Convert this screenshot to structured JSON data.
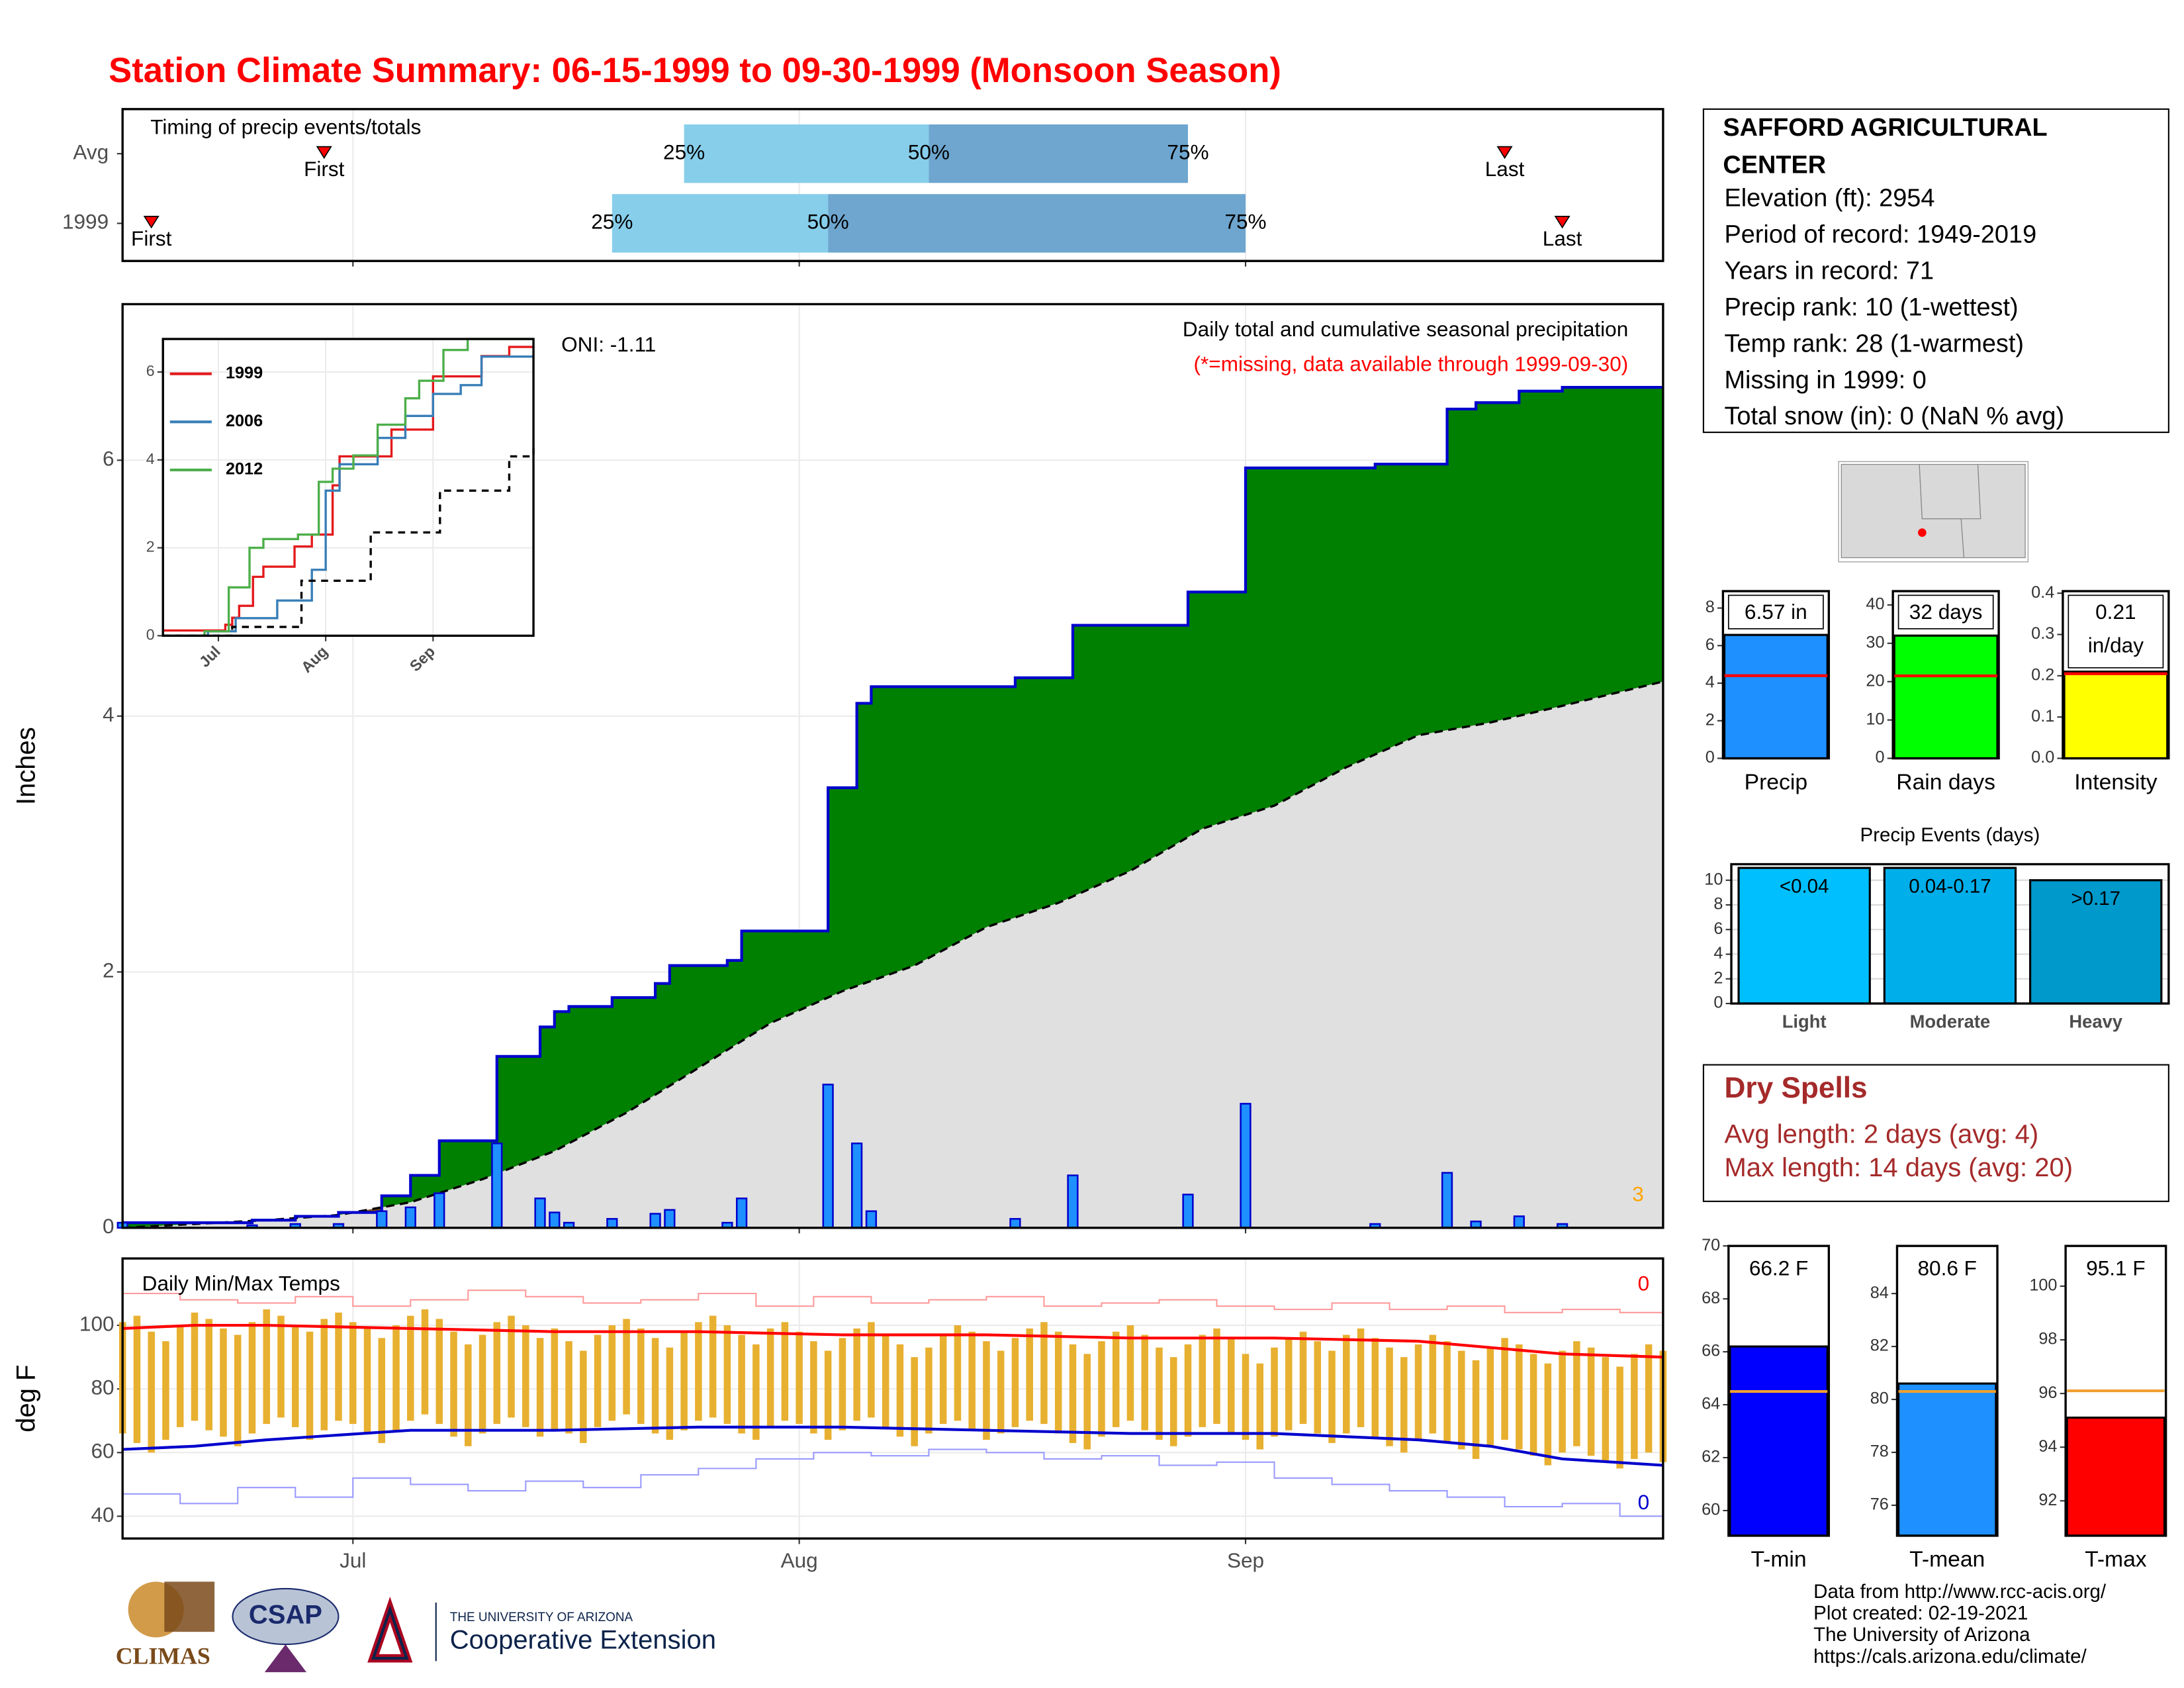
{
  "title": "Station Climate Summary: 06-15-1999 to 09-30-1999 (Monsoon Season)",
  "station": {
    "name": "SAFFORD AGRICULTURAL CENTER",
    "lines": [
      "Elevation (ft): 2954",
      "Period of record: 1949-2019",
      "Years in record: 71",
      "Precip rank: 10 (1-wettest)",
      "Temp rank: 28 (1-warmest)",
      "Missing in 1999: 0",
      "Total snow (in): 0 (NaN % avg)"
    ]
  },
  "dry_spells": {
    "title": "Dry Spells",
    "lines": [
      "Avg length: 2 days (avg: 4)",
      "Max length: 14 days (avg: 20)"
    ]
  },
  "footer": {
    "logos": [
      "CLIMAS",
      "CSAP",
      "THE UNIVERSITY OF ARIZONA",
      "Cooperative Extension"
    ],
    "lines": [
      "Data from http://www.rcc-acis.org/",
      "Plot created: 02-19-2021",
      "The University of Arizona",
      "https://cals.arizona.edu/climate/"
    ]
  },
  "chart_data": [
    {
      "type": "timing",
      "title": "Timing of precip events/totals",
      "event_labels": [
        "First",
        "25%",
        "50%",
        "75%",
        "Last"
      ],
      "series": [
        {
          "name": "Avg",
          "values": [
            14,
            39,
            56,
            74,
            96
          ]
        },
        {
          "name": "1999",
          "values": [
            2,
            34,
            49,
            78,
            100
          ]
        }
      ],
      "colors": [
        "#87ceeb",
        "#6ea6cf",
        "#ff0000"
      ],
      "xlim": [
        0,
        107
      ],
      "xticks": [
        16,
        47,
        78
      ],
      "grid": true
    },
    {
      "type": "precip",
      "subtitle": "Daily total and cumulative seasonal precipitation",
      "note": "(*=missing, data available through 1999-09-30)",
      "oni": "ONI: -1.11",
      "missing_days": 3,
      "ylabel": "Inches",
      "x": [
        0,
        9,
        12,
        15,
        18,
        20,
        22,
        26,
        29,
        30,
        31,
        34,
        37,
        38,
        42,
        43,
        49,
        51,
        52,
        62,
        66,
        74,
        78,
        87,
        92,
        94,
        97,
        100
      ],
      "values": [
        0.04,
        0.02,
        0.03,
        0.03,
        0.13,
        0.16,
        0.27,
        0.66,
        0.23,
        0.12,
        0.04,
        0.07,
        0.11,
        0.14,
        0.04,
        0.23,
        1.12,
        0.66,
        0.13,
        0.07,
        0.41,
        0.26,
        0.97,
        0.03,
        0.43,
        0.05,
        0.09,
        0.03
      ],
      "avg_x": [
        0,
        5,
        10,
        15,
        20,
        25,
        30,
        35,
        40,
        45,
        50,
        55,
        60,
        65,
        70,
        75,
        80,
        85,
        90,
        95,
        100,
        107
      ],
      "avg_values": [
        0,
        0.03,
        0.06,
        0.1,
        0.2,
        0.38,
        0.6,
        0.9,
        1.25,
        1.6,
        1.85,
        2.05,
        2.35,
        2.54,
        2.79,
        3.12,
        3.3,
        3.6,
        3.85,
        3.95,
        4.08,
        4.27
      ],
      "colors": {
        "bar": "#1e90ff",
        "bar_edge": "#0000cd",
        "line": "#0000cd",
        "above": "#008000",
        "below": "#7a4a1a",
        "avg_fill": "#e0e0e0"
      },
      "xlim": [
        0,
        107
      ],
      "xticks": [
        16,
        47,
        78
      ],
      "ylim": [
        0,
        7.22
      ],
      "yticks": [
        0,
        2,
        4,
        6
      ],
      "grid": true
    },
    {
      "type": "line",
      "xlim": [
        0,
        107
      ],
      "ylim": [
        0,
        6.75
      ],
      "yticks": [
        0,
        2,
        4,
        6
      ],
      "xticks": [
        {
          "value": 16,
          "label": "Jul"
        },
        {
          "value": 47,
          "label": "Aug"
        },
        {
          "value": 78,
          "label": "Sep"
        }
      ],
      "series": [
        {
          "name": "1999",
          "color": "#e41a1c",
          "x": [
            0,
            18,
            20,
            22,
            26,
            29,
            38,
            43,
            49,
            51,
            66,
            78,
            92,
            100,
            107
          ],
          "values": [
            0.12,
            0.25,
            0.41,
            0.68,
            1.34,
            1.57,
            2.03,
            2.3,
            3.42,
            4.08,
            4.69,
            5.9,
            6.36,
            6.57,
            6.57
          ]
        },
        {
          "name": "2006",
          "color": "#377eb8",
          "x": [
            0,
            13,
            21,
            33,
            43,
            47,
            51,
            62,
            70,
            78,
            86,
            92,
            107
          ],
          "values": [
            0,
            0.1,
            0.4,
            0.8,
            1.5,
            3.3,
            3.9,
            4.5,
            5.0,
            5.5,
            5.7,
            6.35,
            6.35
          ]
        },
        {
          "name": "2012",
          "color": "#4daf4a",
          "x": [
            0,
            12,
            19,
            25,
            29,
            39,
            45,
            49,
            55,
            62,
            70,
            74,
            81,
            88,
            107
          ],
          "values": [
            0,
            0.1,
            1.1,
            2.0,
            2.2,
            2.3,
            3.5,
            3.8,
            4.1,
            4.8,
            5.4,
            5.8,
            6.5,
            6.75,
            6.75
          ]
        },
        {
          "color": "#000000",
          "dashed": true,
          "x": [
            0,
            20,
            40,
            60,
            80,
            100,
            107
          ],
          "values": [
            0,
            0.2,
            1.25,
            2.35,
            3.3,
            4.08,
            4.27
          ]
        }
      ]
    },
    {
      "type": "temperature",
      "title": "Daily Min/Max Temps",
      "ylabel": "deg F",
      "record_high_days": 0,
      "record_low_days": 0,
      "xlim": [
        0,
        107
      ],
      "xticks": [
        {
          "value": 16,
          "label": "Jul"
        },
        {
          "value": 47,
          "label": "Aug"
        },
        {
          "value": 78,
          "label": "Sep"
        }
      ],
      "ylim": [
        33,
        121
      ],
      "yticks": [
        40,
        60,
        80,
        100
      ],
      "grid": true,
      "colors": {
        "bar": "#e8b030",
        "avg_max": "#ff0000",
        "avg_min": "#0000cd",
        "record_high": "#ff9a9a",
        "record_low": "#9a9aff"
      },
      "x": [
        0,
        1,
        2,
        3,
        4,
        5,
        6,
        7,
        8,
        9,
        10,
        11,
        12,
        13,
        14,
        15,
        16,
        17,
        18,
        19,
        20,
        21,
        22,
        23,
        24,
        25,
        26,
        27,
        28,
        29,
        30,
        31,
        32,
        33,
        34,
        35,
        36,
        37,
        38,
        39,
        40,
        41,
        42,
        43,
        44,
        45,
        46,
        47,
        48,
        49,
        50,
        51,
        52,
        53,
        54,
        55,
        56,
        57,
        58,
        59,
        60,
        61,
        62,
        63,
        64,
        65,
        66,
        67,
        68,
        69,
        70,
        71,
        72,
        73,
        74,
        75,
        76,
        77,
        78,
        79,
        80,
        81,
        82,
        83,
        84,
        85,
        86,
        87,
        88,
        89,
        90,
        91,
        92,
        93,
        94,
        95,
        96,
        97,
        98,
        99,
        100,
        101,
        102,
        103,
        104,
        105,
        106,
        107
      ],
      "tmax": [
        101,
        103,
        98,
        95,
        100,
        104,
        102,
        99,
        97,
        101,
        105,
        103,
        100,
        98,
        102,
        104,
        101,
        99,
        96,
        100,
        103,
        105,
        102,
        98,
        94,
        97,
        101,
        103,
        100,
        96,
        99,
        95,
        92,
        97,
        100,
        102,
        99,
        96,
        93,
        98,
        101,
        103,
        100,
        97,
        94,
        99,
        101,
        98,
        95,
        92,
        96,
        99,
        101,
        97,
        94,
        90,
        93,
        97,
        100,
        98,
        95,
        92,
        96,
        99,
        101,
        98,
        94,
        91,
        95,
        98,
        100,
        97,
        93,
        90,
        94,
        97,
        99,
        96,
        91,
        88,
        93,
        96,
        98,
        95,
        92,
        97,
        99,
        96,
        93,
        90,
        94,
        97,
        95,
        92,
        89,
        93,
        96,
        94,
        91,
        88,
        92,
        95,
        93,
        90,
        87,
        91,
        94,
        92
      ],
      "tmin": [
        66,
        63,
        60,
        64,
        68,
        70,
        67,
        65,
        62,
        66,
        69,
        71,
        68,
        64,
        67,
        70,
        69,
        66,
        63,
        67,
        70,
        72,
        69,
        65,
        62,
        66,
        69,
        71,
        68,
        65,
        67,
        66,
        63,
        68,
        70,
        72,
        69,
        66,
        64,
        67,
        70,
        71,
        69,
        66,
        64,
        68,
        70,
        69,
        66,
        64,
        67,
        70,
        71,
        68,
        65,
        62,
        66,
        69,
        70,
        67,
        64,
        66,
        68,
        70,
        69,
        66,
        63,
        61,
        65,
        68,
        70,
        67,
        64,
        62,
        65,
        68,
        69,
        66,
        64,
        61,
        65,
        67,
        69,
        66,
        63,
        66,
        68,
        65,
        62,
        60,
        64,
        66,
        63,
        61,
        58,
        62,
        64,
        61,
        59,
        56,
        60,
        62,
        59,
        57,
        55,
        58,
        60,
        57
      ],
      "avg_x": [
        0,
        5,
        10,
        20,
        30,
        40,
        50,
        60,
        70,
        80,
        90,
        95,
        100,
        107
      ],
      "avg_max": [
        99,
        100,
        100,
        99,
        98,
        98,
        97,
        97,
        96,
        96,
        95,
        93,
        91,
        90
      ],
      "avg_min": [
        61,
        62,
        64,
        67,
        67,
        68,
        68,
        67,
        66,
        66,
        64,
        62,
        58,
        56
      ],
      "record_x": [
        0,
        4,
        8,
        12,
        16,
        20,
        24,
        28,
        32,
        36,
        40,
        44,
        48,
        52,
        56,
        60,
        64,
        68,
        72,
        76,
        80,
        84,
        88,
        92,
        96,
        100,
        104
      ],
      "record_high": [
        110,
        108,
        107,
        109,
        106,
        108,
        111,
        109,
        107,
        108,
        110,
        106,
        109,
        107,
        108,
        109,
        106,
        107,
        108,
        106,
        105,
        107,
        105,
        106,
        104,
        105,
        104
      ],
      "record_low": [
        47,
        44,
        49,
        46,
        52,
        50,
        48,
        51,
        49,
        53,
        55,
        58,
        60,
        59,
        61,
        60,
        58,
        59,
        56,
        57,
        52,
        50,
        48,
        46,
        43,
        44,
        40
      ]
    },
    {
      "type": "bar",
      "categories": [
        "Precip"
      ],
      "values": [
        6.57
      ],
      "value_labels": [
        "6.57 in"
      ],
      "average": 4.4,
      "color": "#1e90ff",
      "average_color": "#ff0000",
      "label_box": true,
      "ylim": [
        0,
        8.9
      ],
      "yticks": [
        0,
        2,
        4,
        6,
        8
      ]
    },
    {
      "type": "bar",
      "categories": [
        "Rain days"
      ],
      "values": [
        32
      ],
      "value_labels": [
        "32 days"
      ],
      "average": 21.5,
      "color": "#00ff00",
      "average_color": "#ff0000",
      "label_box": true,
      "ylim": [
        0,
        43.6
      ],
      "yticks": [
        0,
        10,
        20,
        30,
        40
      ]
    },
    {
      "type": "bar",
      "categories": [
        "Intensity"
      ],
      "values": [
        0.21
      ],
      "value_labels": [
        "0.21 in/day"
      ],
      "average": 0.205,
      "color": "#ffff00",
      "average_color": "#ff0000",
      "label_box": true,
      "ylim": [
        0,
        0.405
      ],
      "yticks": [
        {
          "value": 0,
          "label": "0.0"
        },
        0.1,
        0.2,
        0.3,
        0.4
      ]
    },
    {
      "type": "bar",
      "title": "Precip Events (days)",
      "categories": [
        "Light",
        "Moderate",
        "Heavy"
      ],
      "bin_labels": [
        "<0.04",
        "0.04-0.17",
        ">0.17"
      ],
      "values": [
        11,
        11,
        10
      ],
      "colors": [
        "#00bfff",
        "#00aeea",
        "#0099cc"
      ],
      "ylim": [
        0,
        11.3
      ],
      "yticks": [
        0,
        2,
        4,
        6,
        8,
        10
      ],
      "grid": true
    },
    {
      "type": "bar",
      "categories": [
        "T-min"
      ],
      "values": [
        66.2
      ],
      "value_labels": [
        "66.2 F"
      ],
      "average": 64.5,
      "color": "#0000ff",
      "average_color": "#f0a030",
      "ylim": [
        59.05,
        70
      ],
      "yticks": [
        60,
        62,
        64,
        66,
        68,
        70
      ]
    },
    {
      "type": "bar",
      "categories": [
        "T-mean"
      ],
      "values": [
        80.6
      ],
      "value_labels": [
        "80.6 F"
      ],
      "average": 80.3,
      "color": "#1e90ff",
      "average_color": "#f0a030",
      "ylim": [
        74.85,
        85.8
      ],
      "yticks": [
        76,
        78,
        80,
        82,
        84
      ]
    },
    {
      "type": "bar",
      "categories": [
        "T-max"
      ],
      "values": [
        95.1
      ],
      "value_labels": [
        "95.1 F"
      ],
      "average": 96.1,
      "color": "#ff0000",
      "average_color": "#f0a030",
      "ylim": [
        90.7,
        101.5
      ],
      "yticks": [
        92,
        94,
        96,
        98,
        100
      ]
    }
  ]
}
